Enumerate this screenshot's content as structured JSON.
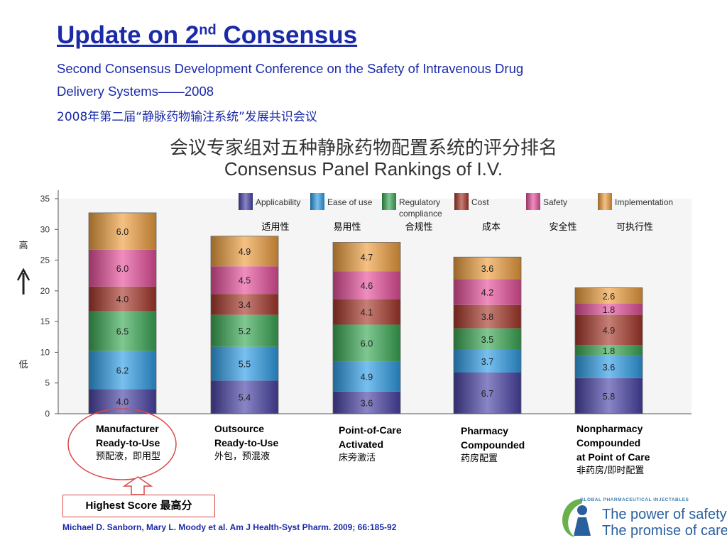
{
  "header": {
    "title_main": "Update on 2",
    "title_sup": "nd",
    "title_tail": " Consensus",
    "subtitle_line1": "Second Consensus Development Conference on the Safety of Intravenous Drug",
    "subtitle_line2": "Delivery Systems——2008",
    "subtitle_line3": "2008年第二届“静脉药物输注系统”发展共识会议"
  },
  "chart_data": {
    "type": "bar",
    "stacked": true,
    "title": "会议专家组对五种静脉药物配置系统的评分排名",
    "subtitle": "Consensus Panel Rankings of I.V.",
    "ylim": [
      0,
      35
    ],
    "yticks": [
      0,
      5,
      10,
      15,
      20,
      25,
      30,
      35
    ],
    "y_axis_high_label": "高",
    "y_axis_low_label": "低",
    "categories": [
      {
        "en1": "Manufacturer",
        "en2": "Ready-to-Use",
        "en3": "",
        "zh": "预配液，即用型"
      },
      {
        "en1": "Outsource",
        "en2": "Ready-to-Use",
        "en3": "",
        "zh": "外包，预混液"
      },
      {
        "en1": "Point-of-Care",
        "en2": "Activated",
        "en3": "",
        "zh": "床旁激活"
      },
      {
        "en1": "Pharmacy",
        "en2": "Compounded",
        "en3": "",
        "zh": "药房配置"
      },
      {
        "en1": "Nonpharmacy",
        "en2": "Compounded",
        "en3": "at Point of Care",
        "zh": "非药房/即时配置"
      }
    ],
    "series": [
      {
        "name": "Applicability",
        "name_line2": "",
        "zh": "适用性",
        "color": "#4a44a8",
        "values": [
          4.0,
          5.4,
          3.6,
          6.7,
          5.8
        ]
      },
      {
        "name": "Ease of use",
        "name_line2": "",
        "zh": "易用性",
        "color": "#2f9ee8",
        "values": [
          6.2,
          5.5,
          4.9,
          3.7,
          3.6
        ]
      },
      {
        "name": "Regulatory",
        "name_line2": "compliance",
        "zh": "合规性",
        "color": "#3aaa55",
        "values": [
          6.5,
          5.2,
          6.0,
          3.5,
          1.8
        ]
      },
      {
        "name": "Cost",
        "name_line2": "",
        "zh": "成本",
        "color": "#a8382a",
        "values": [
          4.0,
          3.4,
          4.1,
          3.8,
          4.9
        ]
      },
      {
        "name": "Safety",
        "name_line2": "",
        "zh": "安全性",
        "color": "#e8509c",
        "values": [
          6.0,
          4.5,
          4.6,
          4.2,
          1.8
        ]
      },
      {
        "name": "Implementation",
        "name_line2": "",
        "zh": "可执行性",
        "color": "#f0a040",
        "values": [
          6.0,
          4.9,
          4.7,
          3.6,
          2.6
        ]
      }
    ]
  },
  "annotation": {
    "highest_label": "Highest Score 最高分"
  },
  "footer": {
    "citation": "Michael D. Sanborn, Mary L. Moody et al. Am J Health-Syst Pharm. 2009; 66:185-92",
    "logo_small": "GLOBAL PHARMACEUTICAL INJECTABLES",
    "logo_line1": "The power of safety.",
    "logo_line2": "The promise of care.",
    "logo_colors": [
      "#2a5f9e",
      "#6ab04c"
    ]
  }
}
